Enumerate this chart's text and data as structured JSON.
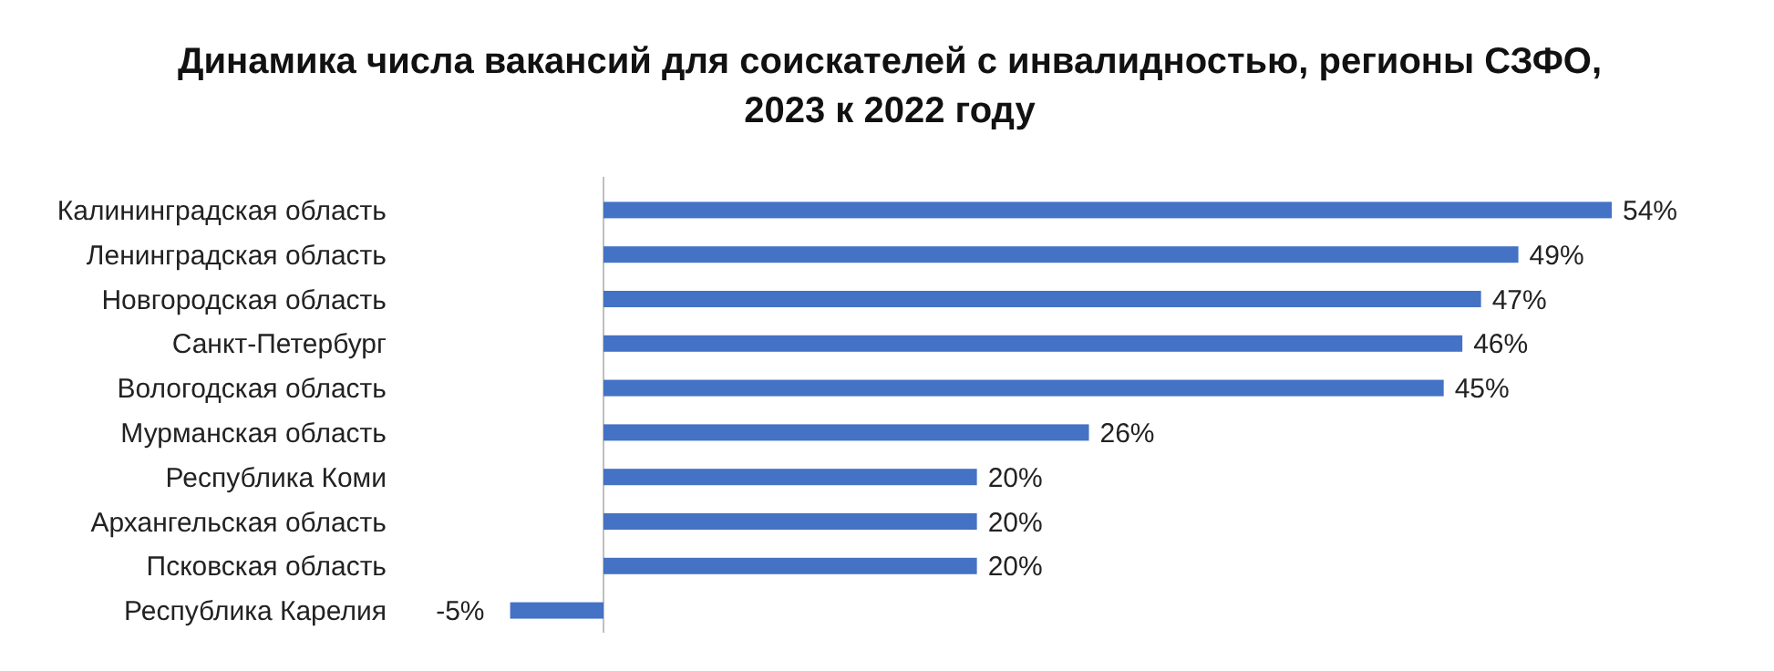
{
  "chart_data": {
    "type": "bar",
    "orientation": "horizontal",
    "title": "Динамика числа вакансий для соискателей с инвалидностью, регионы СЗФО, 2023 к 2022 году",
    "categories": [
      "Калининградская область",
      "Ленинградская область",
      "Новгородская область",
      "Санкт-Петербург",
      "Вологодская область",
      "Мурманская область",
      "Республика Коми",
      "Архангельская область",
      "Псковская область",
      "Республика Карелия"
    ],
    "values": [
      54,
      49,
      47,
      46,
      45,
      26,
      20,
      20,
      20,
      -5
    ],
    "value_labels": [
      "54%",
      "49%",
      "47%",
      "46%",
      "45%",
      "26%",
      "20%",
      "20%",
      "20%",
      "-5%"
    ],
    "color": "#4472c4"
  }
}
